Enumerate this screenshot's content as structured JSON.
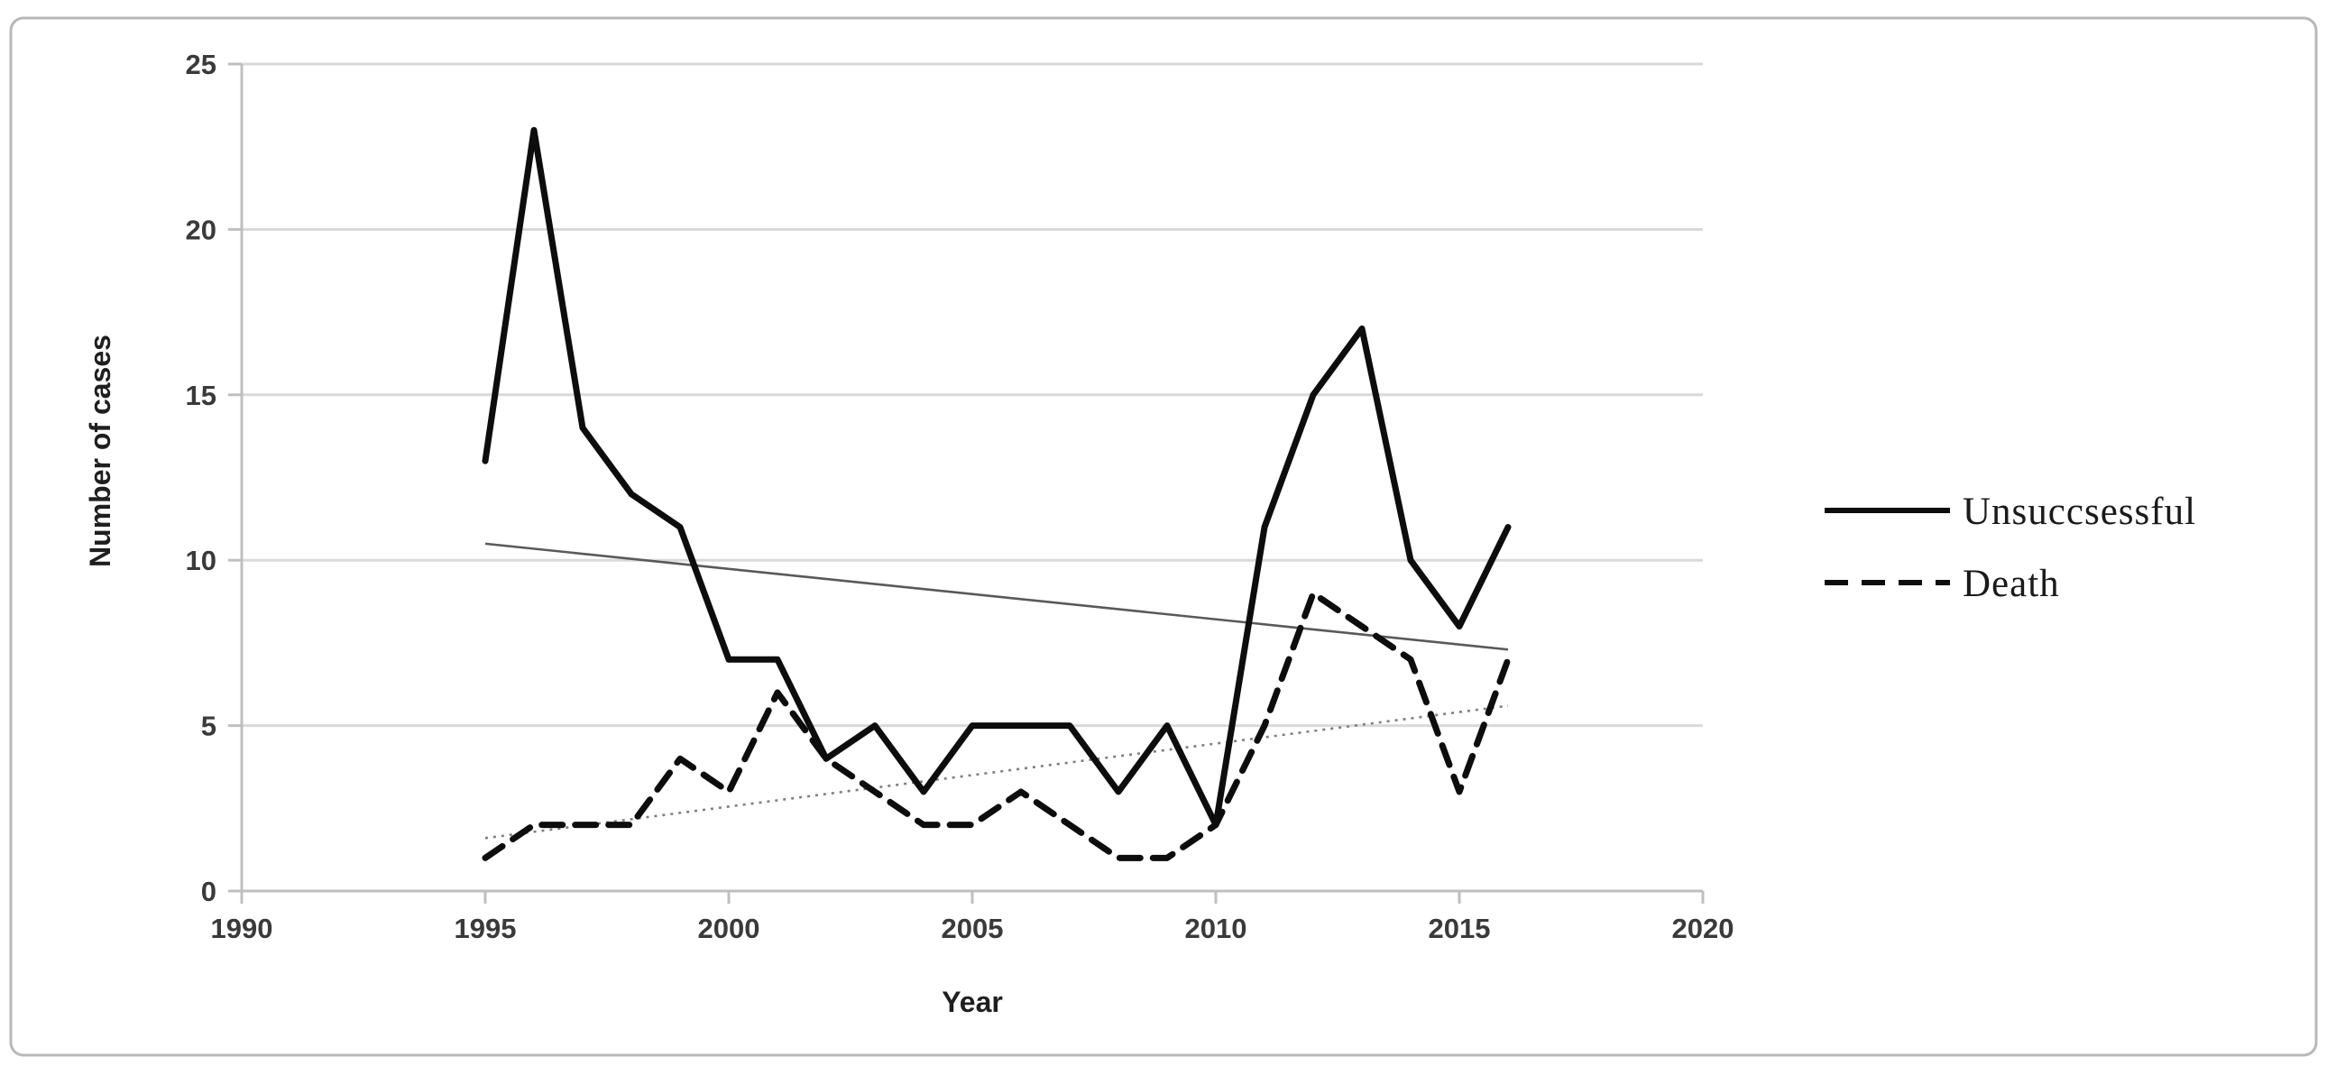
{
  "chart_data": {
    "type": "line",
    "title": "",
    "xlabel": "Year",
    "ylabel": "Number of cases",
    "xlim": [
      1990,
      2020
    ],
    "ylim": [
      0,
      25
    ],
    "x_ticks": [
      1990,
      1995,
      2000,
      2005,
      2010,
      2015,
      2020
    ],
    "y_ticks": [
      0,
      5,
      10,
      15,
      20,
      25
    ],
    "grid": true,
    "legend_position": "right",
    "x": [
      1995,
      1996,
      1997,
      1998,
      1999,
      2000,
      2001,
      2002,
      2003,
      2004,
      2005,
      2006,
      2007,
      2008,
      2009,
      2010,
      2011,
      2012,
      2013,
      2014,
      2015,
      2016
    ],
    "series": [
      {
        "name": "Unsuccsessful",
        "line_style": "solid",
        "color": "#0d0d0d",
        "values": [
          13,
          23,
          14,
          12,
          11,
          7,
          7,
          4,
          5,
          3,
          5,
          5,
          5,
          3,
          5,
          2,
          11,
          15,
          17,
          10,
          8,
          11
        ]
      },
      {
        "name": "Death",
        "line_style": "dashed",
        "color": "#0d0d0d",
        "values": [
          1,
          2,
          2,
          2,
          4,
          3,
          6,
          4,
          3,
          2,
          2,
          3,
          2,
          1,
          1,
          2,
          5,
          9,
          8,
          7,
          3,
          7
        ]
      }
    ],
    "trendlines": [
      {
        "for_series": "Unsuccsessful",
        "line_style": "thin-solid",
        "color": "#595959",
        "start_year": 1995,
        "start_value": 10.5,
        "end_year": 2016,
        "end_value": 7.3
      },
      {
        "for_series": "Death",
        "line_style": "dotted",
        "color": "#7f7f7f",
        "start_year": 1995,
        "start_value": 1.6,
        "end_year": 2016,
        "end_value": 5.6
      }
    ],
    "legend": {
      "entries": [
        "Unsuccsessful",
        "Death"
      ]
    }
  },
  "colors": {
    "background": "#ffffff",
    "gridline": "#d9d9d9",
    "axis": "#bfbfbf",
    "tick_label": "#3a3a3a",
    "series_line": "#0d0d0d",
    "figure_border": "#b8b8b8"
  }
}
